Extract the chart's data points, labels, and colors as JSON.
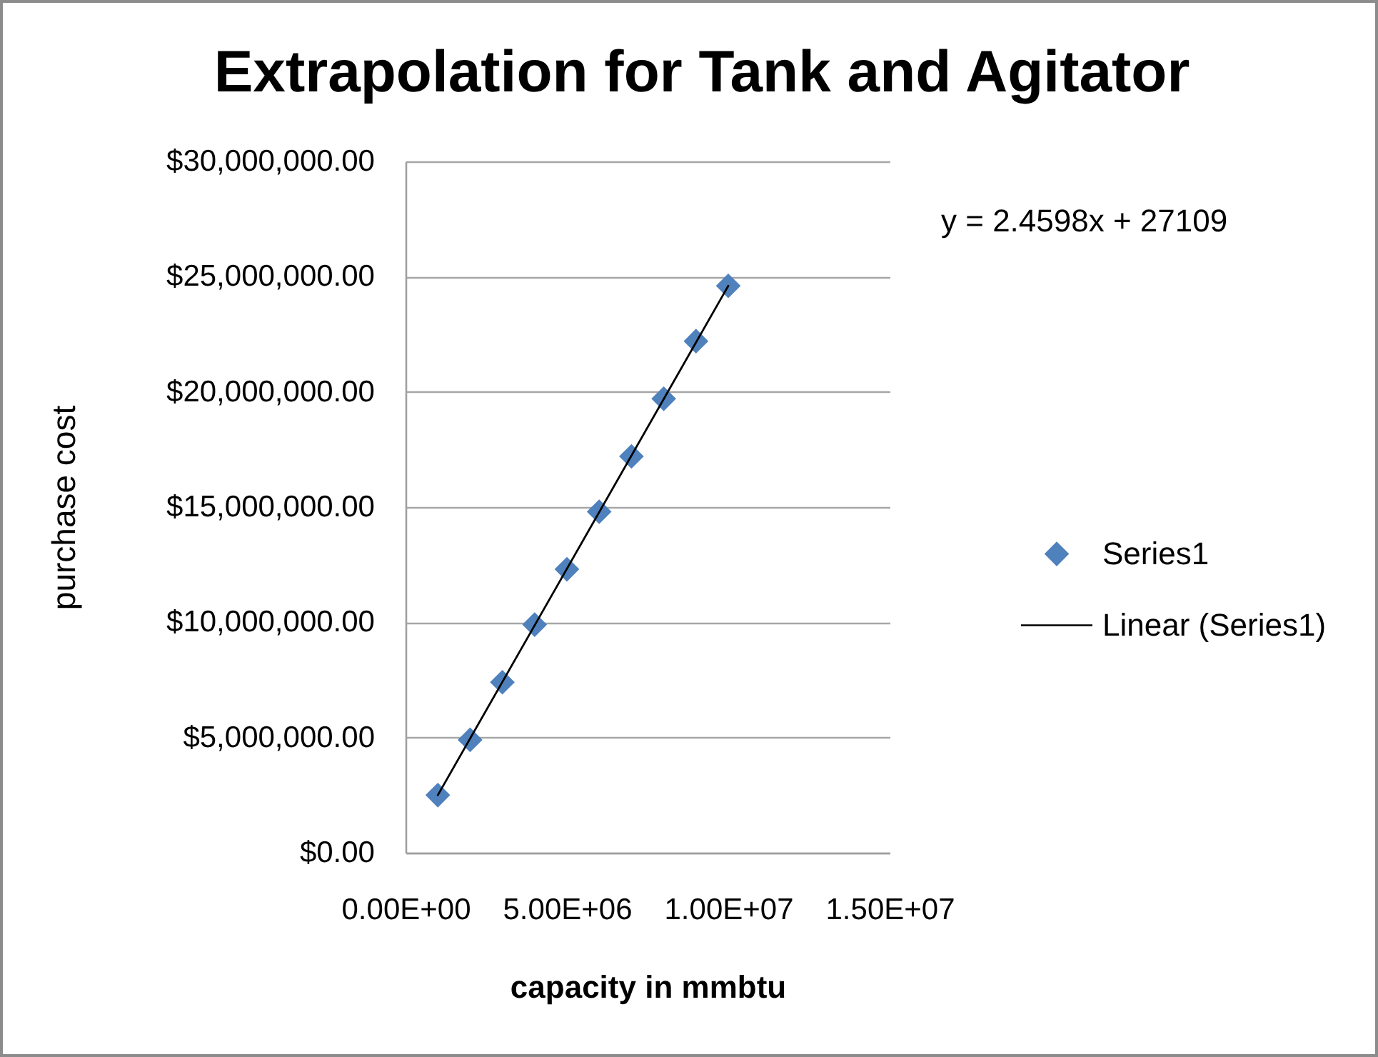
{
  "chart_data": {
    "type": "scatter",
    "title": "Extrapolation for Tank and Agitator",
    "xlabel": "capacity in mmbtu",
    "ylabel": "purchase cost",
    "annotations": [
      "y = 2.4598x + 27109"
    ],
    "series": [
      {
        "name": "Series1",
        "color": "#4f81bd",
        "marker": "diamond",
        "x": [
          1000000,
          2000000,
          3000000,
          4000000,
          5000000,
          6000000,
          7000000,
          8000000,
          9000000,
          10000000
        ],
        "values": [
          2500000,
          4900000,
          7400000,
          9900000,
          12300000,
          14800000,
          17200000,
          19700000,
          22200000,
          24600000
        ]
      },
      {
        "name": "Linear (Series1)",
        "type": "line",
        "color": "#000000",
        "x": [
          1000000,
          10000000
        ],
        "values": [
          2500000,
          24600000
        ]
      }
    ],
    "xlim": [
      0,
      15000000
    ],
    "xticks": [
      {
        "value": 0,
        "label": "0.00E+00"
      },
      {
        "value": 5000000,
        "label": "5.00E+06"
      },
      {
        "value": 10000000,
        "label": "1.00E+07"
      },
      {
        "value": 15000000,
        "label": "1.50E+07"
      }
    ],
    "ylim": [
      0,
      30000000
    ],
    "yticks": [
      {
        "value": 0,
        "label": "$0.00"
      },
      {
        "value": 5000000,
        "label": "$5,000,000.00"
      },
      {
        "value": 10000000,
        "label": "$10,000,000.00"
      },
      {
        "value": 15000000,
        "label": "$15,000,000.00"
      },
      {
        "value": 20000000,
        "label": "$20,000,000.00"
      },
      {
        "value": 25000000,
        "label": "$25,000,000.00"
      },
      {
        "value": 30000000,
        "label": "$30,000,000.00"
      }
    ],
    "grid": "y",
    "legend": "right"
  }
}
